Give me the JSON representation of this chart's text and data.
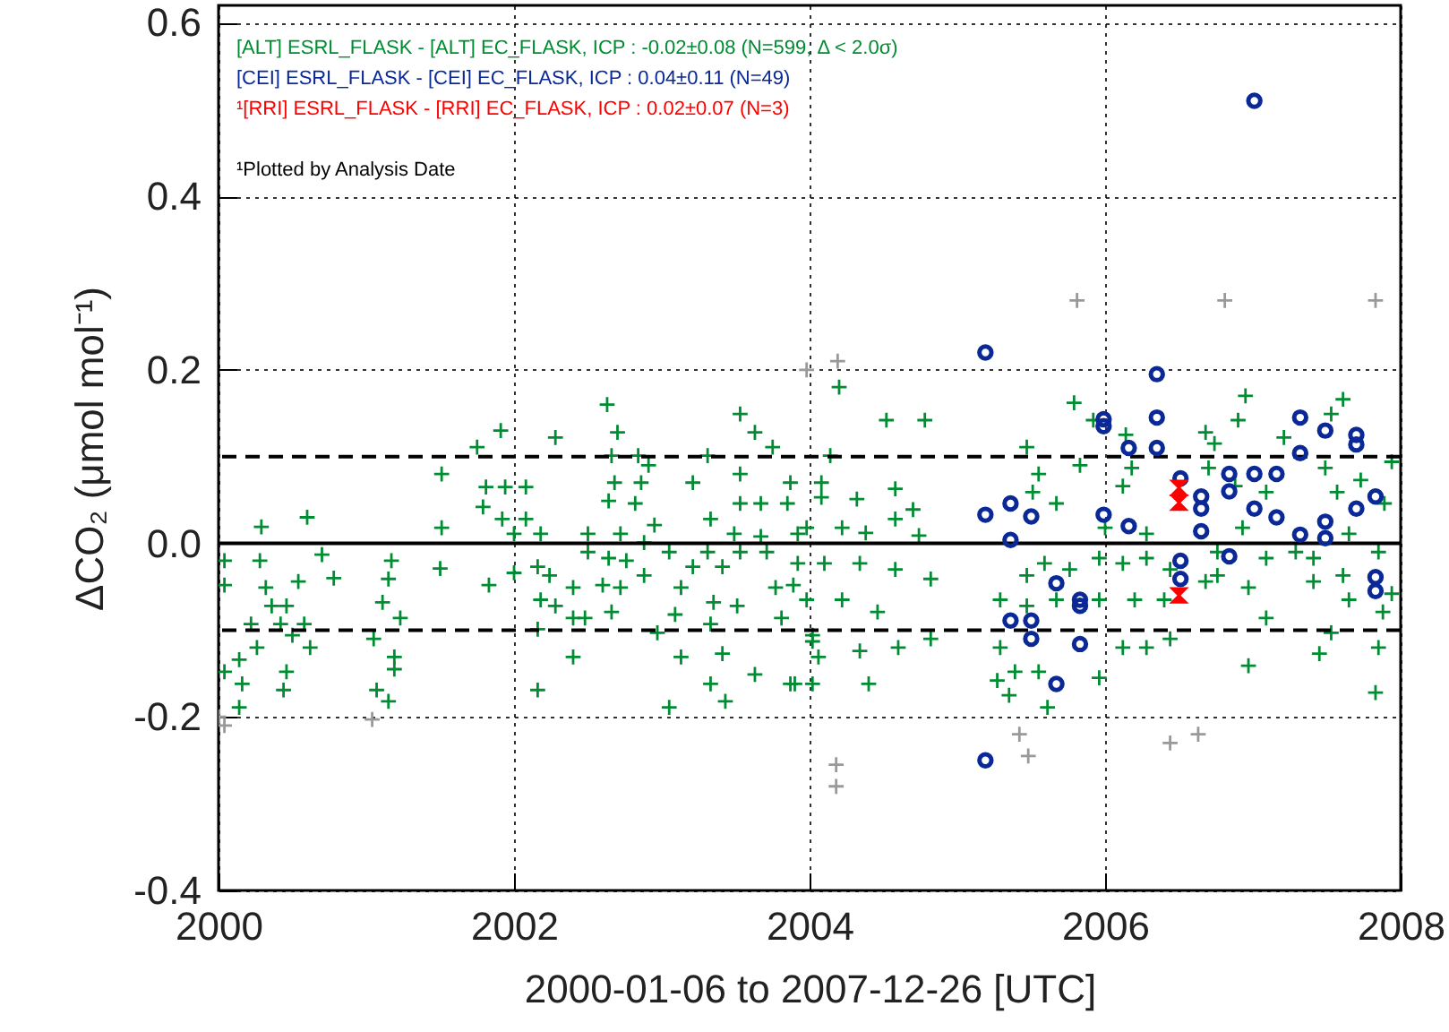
{
  "chart_data": {
    "type": "scatter",
    "xlabel": "2000-01-06 to 2007-12-26 [UTC]",
    "ylabel": "ΔCO₂ (μmol mol⁻¹)",
    "xlim": [
      2000,
      2008
    ],
    "ylim": [
      -0.4,
      0.62
    ],
    "xticks": [
      2000,
      2002,
      2004,
      2006,
      2008
    ],
    "yticks": [
      -0.4,
      -0.2,
      {
        "value": 0,
        "label": "0.0"
      },
      0.2,
      0.4,
      0.6
    ],
    "grid": true,
    "annotations": [
      "¹Plotted by Analysis Date"
    ],
    "ref_lines": [
      {
        "axis": "y",
        "value": 0,
        "color": "#000000",
        "line_style": "solid"
      },
      {
        "axis": "y",
        "value": 0.1,
        "color": "#000000",
        "line_style": "dashed"
      },
      {
        "axis": "y",
        "value": -0.1,
        "color": "#000000",
        "line_style": "dashed"
      }
    ],
    "series": [
      {
        "name": "[ALT] ESRL_FLASK - [ALT] EC_FLASK, ICP : -0.02±0.08 (N=599, Δ < 2.0σ)",
        "color": "#008c32",
        "marker": "cross",
        "x": [
          2000.04,
          2000.04,
          2000.28,
          2000.29,
          2000.6,
          2000.7,
          2000.78,
          2000.54,
          2000.32,
          2000.36,
          2000.46,
          2000.22,
          2000.42,
          2000.58,
          2000.5,
          2000.26,
          2000.14,
          2000.04,
          2000.16,
          2000.46,
          2000.44,
          2000.14,
          2000.62,
          2001.17,
          2001.15,
          2001.11,
          2001.23,
          2001.05,
          2001.19,
          2001.19,
          2001.07,
          2001.15,
          2001.51,
          2001.51,
          2001.5,
          2001.75,
          2001.91,
          2001.81,
          2001.94,
          2002.08,
          2001.79,
          2001.92,
          2002.08,
          2002,
          2002.18,
          2001.83,
          2002,
          2002.16,
          2002.24,
          2002.18,
          2002.28,
          2002.4,
          2002.16,
          2002.4,
          2002.16,
          2002.28,
          2002.63,
          2002.7,
          2002.66,
          2002.84,
          2002.91,
          2002.68,
          2002.86,
          2002.64,
          2002.82,
          2002.95,
          2002.5,
          2002.72,
          2002.88,
          2002.5,
          2002.64,
          2002.76,
          2002.6,
          2002.4,
          2002.72,
          2002.88,
          2002.66,
          2002.48,
          2003.05,
          2003.13,
          2003.09,
          2002.97,
          2003.13,
          2003.05,
          2003.21,
          2003.31,
          2003.53,
          2003.63,
          2003.75,
          2003.87,
          2003.67,
          2003.53,
          2003.33,
          2003.49,
          2003.67,
          2003.92,
          2003.31,
          2003.53,
          2003.71,
          2003.21,
          2003.41,
          2003.35,
          2003.51,
          2003.33,
          2003.41,
          2003.33,
          2003.43,
          2003.63,
          2003.87,
          2003.81,
          2003.89,
          2004.02,
          2004.02,
          2003.77,
          2003.53,
          2003.85,
          2004.2,
          2004.52,
          2004.78,
          2004.14,
          2004.08,
          2004.08,
          2004.32,
          2004.58,
          2004.7,
          2004.58,
          2003.98,
          2004.22,
          2004.38,
          2004.74,
          2003.92,
          2004.1,
          2004.34,
          2004.58,
          2004.82,
          2003.98,
          2004.22,
          2004.46,
          2004.02,
          2004.34,
          2004.6,
          2004.82,
          2004.06,
          2003.9,
          2004.4,
          2005.47,
          2005.55,
          2005.51,
          2005.67,
          2005.83,
          2005.79,
          2005.92,
          2006.14,
          2006.18,
          2006.12,
          2006,
          2006.28,
          2005.47,
          2005.59,
          2005.76,
          2005.96,
          2006.12,
          2006.28,
          2006.44,
          2005.29,
          2005.47,
          2005.67,
          2005.96,
          2006.2,
          2006.4,
          2005.29,
          2005.27,
          2005.39,
          2005.35,
          2005.55,
          2005.61,
          2005.96,
          2006.12,
          2006.28,
          2006.44,
          2006.68,
          2006.74,
          2006.9,
          2006.95,
          2006.7,
          2006.88,
          2007.09,
          2006.93,
          2006.76,
          2007.09,
          2007.29,
          2006.68,
          2006.97,
          2006.76,
          2007.09,
          2006.97,
          2007.45,
          2007.53,
          2007.85,
          2007.83,
          2007.61,
          2007.53,
          2007.21,
          2007.49,
          2007.73,
          2007.94,
          2007.57,
          2007.89,
          2007.65,
          2007.41,
          2007.61,
          2007.85,
          2007.65,
          2007.41,
          2007.94,
          2007.88
        ],
        "values": [
          -0.02,
          -0.048,
          -0.02,
          0.019,
          0.03,
          -0.013,
          -0.04,
          -0.044,
          -0.051,
          -0.072,
          -0.072,
          -0.093,
          -0.093,
          -0.093,
          -0.106,
          -0.12,
          -0.134,
          -0.148,
          -0.162,
          -0.148,
          -0.169,
          -0.189,
          -0.12,
          -0.02,
          -0.041,
          -0.068,
          -0.086,
          -0.11,
          -0.131,
          -0.145,
          -0.169,
          -0.182,
          0.08,
          0.018,
          -0.029,
          0.111,
          0.13,
          0.065,
          0.065,
          0.065,
          0.042,
          0.028,
          0.028,
          0.011,
          0.011,
          -0.048,
          -0.034,
          -0.027,
          -0.037,
          -0.065,
          -0.072,
          -0.086,
          -0.099,
          -0.131,
          -0.169,
          0.122,
          0.16,
          0.128,
          0.101,
          0.101,
          0.09,
          0.07,
          0.07,
          0.049,
          0.046,
          0.021,
          0.011,
          0.011,
          0.001,
          -0.01,
          -0.017,
          -0.02,
          -0.048,
          -0.051,
          -0.051,
          -0.037,
          -0.079,
          -0.086,
          -0.01,
          -0.051,
          -0.082,
          -0.103,
          -0.131,
          -0.189,
          0.07,
          0.101,
          0.149,
          0.128,
          0.111,
          0.07,
          0.046,
          0.046,
          0.028,
          0.011,
          0.008,
          0.011,
          -0.01,
          -0.01,
          -0.01,
          -0.027,
          -0.027,
          -0.068,
          -0.072,
          -0.093,
          -0.127,
          -0.162,
          -0.182,
          -0.151,
          -0.162,
          -0.086,
          -0.048,
          -0.106,
          -0.162,
          -0.051,
          0.08,
          0.046,
          0.18,
          0.142,
          0.142,
          0.101,
          0.07,
          0.053,
          0.051,
          0.063,
          0.039,
          0.028,
          0.018,
          0.018,
          0.012,
          0.009,
          -0.023,
          -0.023,
          -0.023,
          -0.03,
          -0.041,
          -0.065,
          -0.065,
          -0.079,
          -0.113,
          -0.124,
          -0.12,
          -0.11,
          -0.131,
          -0.162,
          -0.162,
          0.111,
          0.08,
          0.059,
          0.046,
          0.09,
          0.162,
          0.142,
          0.125,
          0.087,
          0.066,
          0.018,
          0.011,
          -0.037,
          -0.023,
          -0.03,
          -0.017,
          -0.023,
          -0.017,
          -0.03,
          -0.065,
          -0.072,
          -0.065,
          -0.065,
          -0.065,
          -0.065,
          -0.12,
          -0.158,
          -0.148,
          -0.175,
          -0.148,
          -0.189,
          -0.155,
          -0.12,
          -0.12,
          -0.11,
          0.128,
          0.115,
          0.142,
          0.17,
          0.087,
          0.066,
          0.059,
          0.018,
          -0.01,
          -0.017,
          -0.01,
          -0.044,
          -0.051,
          -0.037,
          -0.086,
          -0.141,
          -0.127,
          -0.103,
          -0.12,
          -0.172,
          0.166,
          0.149,
          0.122,
          0.087,
          0.073,
          0.094,
          0.059,
          0.046,
          0.011,
          -0.017,
          -0.037,
          -0.01,
          -0.065,
          -0.044,
          -0.058,
          -0.079
        ]
      },
      {
        "color": "#999999",
        "marker": "cross",
        "x": [
          2000.0,
          2000.04,
          2001.04,
          2003.98,
          2004.19,
          2004.18,
          2004.18,
          2005.42,
          2005.48,
          2005.81,
          2006.81,
          2007.83,
          2006.44,
          2006.63
        ],
        "values": [
          -0.2,
          -0.21,
          -0.203,
          0.2,
          0.21,
          -0.255,
          -0.28,
          -0.22,
          -0.245,
          0.28,
          0.28,
          0.28,
          -0.23,
          -0.22
        ]
      },
      {
        "name": "[CEI] ESRL_FLASK - [CEI] EC_FLASK, ICP : 0.04±0.11 (N=49)",
        "color": "#0a2896",
        "marker": "circle",
        "x": [
          2005.19,
          2007.01,
          2006.35,
          2005.99,
          2005.99,
          2006.35,
          2006.16,
          2006.35,
          2007.32,
          2007.49,
          2007.7,
          2007.7,
          2007.32,
          2006.84,
          2007.01,
          2007.16,
          2006.84,
          2006.65,
          2006.65,
          2006.51,
          2007.01,
          2007.16,
          2007.83,
          2007.7,
          2007.49,
          2007.32,
          2007.49,
          2006.65,
          2006.16,
          2005.99,
          2005.19,
          2005.36,
          2005.5,
          2005.36,
          2006.84,
          2006.51,
          2006.51,
          2007.83,
          2007.83,
          2005.67,
          2005.83,
          2005.83,
          2005.36,
          2005.5,
          2005.5,
          2005.83,
          2005.67,
          2005.19
        ],
        "values": [
          0.22,
          0.51,
          0.195,
          0.143,
          0.135,
          0.145,
          0.11,
          0.11,
          0.145,
          0.13,
          0.125,
          0.114,
          0.104,
          0.08,
          0.08,
          0.08,
          0.06,
          0.054,
          0.04,
          0.075,
          0.04,
          0.03,
          0.054,
          0.04,
          0.025,
          0.01,
          0.006,
          0.014,
          0.02,
          0.033,
          0.033,
          0.046,
          0.031,
          0.004,
          -0.015,
          -0.02,
          -0.041,
          -0.039,
          -0.055,
          -0.046,
          -0.065,
          -0.072,
          -0.089,
          -0.089,
          -0.11,
          -0.116,
          -0.162,
          -0.25
        ]
      },
      {
        "name": "¹[RRI] ESRL_FLASK - [RRI] EC_FLASK, ICP : 0.02±0.07 (N=3)",
        "color": "#ff0000",
        "marker": "triangle",
        "x": [
          2006.5,
          2006.5,
          2006.5
        ],
        "values": [
          0.064,
          0.047,
          -0.06
        ]
      }
    ]
  }
}
